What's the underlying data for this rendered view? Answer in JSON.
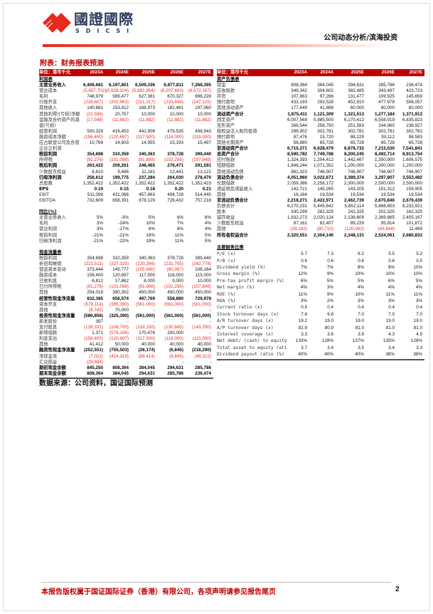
{
  "header": {
    "logo_cn": "國證國際",
    "logo_en": "SDICSI",
    "report_type": "公司动态分析/滨海投资"
  },
  "title": "附表：财务报表预测",
  "colors": {
    "accent": "#c00000",
    "negative": "#e8281c"
  },
  "left_table": {
    "unit": "单位：港币千元",
    "columns": [
      "2023A",
      "2024E",
      "2025E",
      "2026E",
      "2027E"
    ],
    "rows": [
      {
        "label": "利润表",
        "kind": "section",
        "values": []
      },
      {
        "label": "主营业务收入",
        "kind": "bold",
        "values": [
          "6,406,681",
          "6,197,801",
          "6,509,336",
          "6,877,811",
          "7,268,395"
        ]
      },
      {
        "label": "营业成本",
        "values": [
          "(5,657,702)",
          "(5,628,324)",
          "(5,881,954)",
          "(6,207,483)",
          "(6,572,167)"
        ]
      },
      {
        "label": "毛利",
        "values": [
          "748,979",
          "569,477",
          "627,381",
          "670,327",
          "696,228"
        ]
      },
      {
        "label": "行政开支",
        "values": [
          "(218,607)",
          "(202,963)",
          "(221,317)",
          "(233,846)",
          "(247,125)"
        ]
      },
      {
        "label": "其他收入",
        "values": [
          "140,681",
          "153,612",
          "168,973",
          "182,461",
          "197,060"
        ]
      },
      {
        "label": "其他利得/(亏损)净额",
        "values": [
          "(21,596)",
          "20,757",
          "10,000",
          "10,000",
          "10,000"
        ]
      },
      {
        "label": "金融及合约资产的减值(亏损)",
        "values": [
          "(17,548)",
          "(11,882)",
          "(11,882)",
          "(11,882)",
          "(11,882)"
        ]
      },
      {
        "label": "经营利润",
        "values": [
          "500,329",
          "416,453",
          "442,908",
          "479,535",
          "498,943"
        ]
      },
      {
        "label": "融资成本净额",
        "values": [
          "(156,400)",
          "(120,697)",
          "(117,500)",
          "(116,000)",
          "(115,000)"
        ]
      },
      {
        "label": "应占联营公司及合营企业之利润",
        "values": [
          "10,769",
          "14,603",
          "14,955",
          "15,193",
          "15,497"
        ]
      },
      {
        "label": "税前利润",
        "kind": "bold",
        "values": [
          "354,698",
          "310,359",
          "340,363",
          "378,728",
          "399,440"
        ]
      },
      {
        "label": "所得税",
        "values": [
          "(91,276)",
          "(101,098)",
          "(91,898)",
          "(102,256)",
          "(107,849)"
        ]
      },
      {
        "label": "税后利润",
        "kind": "bold",
        "values": [
          "263,422",
          "209,261",
          "248,465",
          "276,471",
          "291,591"
        ]
      },
      {
        "label": "少数股东权益",
        "values": [
          "6,810",
          "9,486",
          "11,181",
          "12,441",
          "13,122"
        ]
      },
      {
        "label": "归母净利润",
        "kind": "bold",
        "values": [
          "256,612",
          "199,775",
          "237,284",
          "264,030",
          "278,470"
        ]
      },
      {
        "label": "总股数",
        "values": [
          "1,352,422",
          "1,352,422",
          "1,352,422",
          "1,352,422",
          "1,352,423"
        ]
      },
      {
        "label": "EPS",
        "kind": "bold",
        "values": [
          "0.19",
          "0.15",
          "0.18",
          "0.20",
          "0.21"
        ]
      },
      {
        "label": "EBIT",
        "values": [
          "511,098",
          "431,066",
          "457,863",
          "494,728",
          "514,440"
        ]
      },
      {
        "label": "EBITDA",
        "values": [
          "732,609",
          "658,391",
          "678,129",
          "726,432",
          "757,218"
        ]
      },
      {
        "label": "",
        "values": []
      },
      {
        "label": "同比(%)",
        "kind": "section",
        "values": []
      },
      {
        "label": "主营业务收入",
        "values": [
          "5%",
          "-3%",
          "5%",
          "6%",
          "6%"
        ]
      },
      {
        "label": "毛利",
        "values": [
          "3%",
          "-24%",
          "10%",
          "7%",
          "4%"
        ]
      },
      {
        "label": "营业利润",
        "values": [
          "3%",
          "-17%",
          "6%",
          "8%",
          "4%"
        ]
      },
      {
        "label": "税前利润",
        "values": [
          "-21%",
          "-21%",
          "19%",
          "11%",
          "5%"
        ]
      },
      {
        "label": "归母净利润",
        "values": [
          "-21%",
          "-22%",
          "19%",
          "11%",
          "5%"
        ]
      },
      {
        "label": "",
        "values": []
      },
      {
        "label": "现金流量表",
        "kind": "section",
        "values": []
      },
      {
        "label": "税前利润",
        "values": [
          "354,698",
          "310,359",
          "340,363",
          "378,728",
          "399,440"
        ]
      },
      {
        "label": "折旧和摊销",
        "values": [
          "(221,511)",
          "(227,325)",
          "(220,266)",
          "(231,705)",
          "(242,778)"
        ]
      },
      {
        "label": "营运资本变动",
        "values": [
          "373,444",
          "145,777",
          "(105,940)",
          "(60,067)",
          "106,164"
        ]
      },
      {
        "label": "融资成本",
        "values": [
          "156,400",
          "120,697",
          "117,500",
          "116,000",
          "115,000"
        ]
      },
      {
        "label": "已收利息",
        "values": [
          "6,812",
          "17,862",
          "8,000",
          "9,000",
          "10,000"
        ]
      },
      {
        "label": "已付所得税",
        "values": [
          "(91,276)",
          "(101,098)",
          "(91,898)",
          "(102,256)",
          "(107,849)"
        ]
      },
      {
        "label": "其他",
        "values": [
          "254,018",
          "390,302",
          "450,000",
          "450,000",
          "450,000"
        ]
      },
      {
        "label": "经营性现金净流量",
        "kind": "bold",
        "values": [
          "832,385",
          "656,574",
          "497,769",
          "558,880",
          "729,978"
        ]
      },
      {
        "label": "资本开支",
        "values": [
          "(578,114)",
          "(395,390)",
          "(561,000)",
          "(561,000)",
          "(561,000)"
        ]
      },
      {
        "label": "其他",
        "values": [
          "(8,742)",
          "70,000",
          "-",
          "-",
          "-"
        ]
      },
      {
        "label": "投资性现金净流量",
        "kind": "bold",
        "values": [
          "(586,856)",
          "(325,390)",
          "(561,000)",
          "(561,000)",
          "(561,000)"
        ]
      },
      {
        "label": "新发股份",
        "values": [
          "397",
          "-",
          "-",
          "-",
          "-"
        ]
      },
      {
        "label": "支付股息",
        "values": [
          "(139,331)",
          "(108,700)",
          "(119,150)",
          "(130,845)",
          "(143,290)"
        ]
      },
      {
        "label": "新增借款",
        "values": [
          "1,371",
          "(576,106)",
          "170,476",
          "200,000",
          "-"
        ]
      },
      {
        "label": "利息支出",
        "values": [
          "(156,400)",
          "(120,697)",
          "(117,500)",
          "(116,000)",
          "(115,000)"
        ]
      },
      {
        "label": "其他",
        "values": [
          "41,412",
          "50,000",
          "40,000",
          "40,000",
          "40,000"
        ]
      },
      {
        "label": "融资性现金净流量",
        "kind": "bold",
        "values": [
          "(252,551)",
          "(755,503)",
          "(26,174)",
          "(6,845)",
          "(218,290)"
        ]
      },
      {
        "label": "净现金流",
        "values": [
          "(7,022)",
          "(424,319)",
          "(89,414)",
          "(6,845)",
          "(49,312)"
        ]
      },
      {
        "label": "汇兑损益",
        "values": [
          "(29,884)",
          "-",
          "-",
          "-",
          "-"
        ]
      },
      {
        "label": "期初现金余额",
        "kind": "bold",
        "values": [
          "845,250",
          "808,364",
          "384,045",
          "294,631",
          "285,786"
        ]
      },
      {
        "label": "期末现金余额",
        "kind": "bold",
        "values": [
          "808,364",
          "384,045",
          "294,631",
          "285,786",
          "236,474"
        ]
      }
    ]
  },
  "right_table": {
    "unit": "单位：港币千元",
    "columns": [
      "2023A",
      "2024A",
      "2025E",
      "2026E",
      "2027E"
    ],
    "rows": [
      {
        "label": "资产负债表",
        "kind": "section",
        "values": []
      },
      {
        "label": "现金",
        "values": [
          "808,364",
          "384,045",
          "294,631",
          "285,786",
          "236,474"
        ]
      },
      {
        "label": "应收账款",
        "values": [
          "348,342",
          "304,602",
          "382,485",
          "343,497",
          "423,723"
        ]
      },
      {
        "label": "存货",
        "values": [
          "107,863",
          "97,266",
          "131,477",
          "109,925",
          "145,659"
        ]
      },
      {
        "label": "预付款项",
        "values": [
          "433,193",
          "293,528",
          "452,910",
          "477,978",
          "506,057"
        ]
      },
      {
        "label": "其他流动资产",
        "values": [
          "177,649",
          "41,868",
          "60,000",
          "60,000",
          "60,000"
        ]
      },
      {
        "label": "流动资产合计",
        "kind": "bold",
        "values": [
          "1,875,411",
          "1,121,309",
          "1,321,513",
          "1,277,184",
          "1,371,913"
        ]
      },
      {
        "label": "固定资产",
        "values": [
          "6,007,569",
          "5,985,500",
          "6,170,412",
          "6,508,919",
          "6,835,823"
        ]
      },
      {
        "label": "无形资产",
        "values": [
          "266,544",
          "258,750",
          "251,583",
          "244,960",
          "238,927"
        ]
      },
      {
        "label": "按权益法入账的投资",
        "values": [
          "296,902",
          "302,781",
          "302,781",
          "302,781",
          "302,781"
        ]
      },
      {
        "label": "预付款项",
        "values": [
          "87,476",
          "15,720",
          "88,229",
          "93,112",
          "98,583"
        ]
      },
      {
        "label": "其他长期资产",
        "values": [
          "56,880",
          "65,728",
          "65,728",
          "65,728",
          "65,728"
        ]
      },
      {
        "label": "非流动资产合计",
        "kind": "bold",
        "values": [
          "6,715,371",
          "6,628,479",
          "6,878,732",
          "7,215,530",
          "7,541,841"
        ]
      },
      {
        "label": "总资产合计",
        "kind": "bold",
        "values": [
          "8,590,782",
          "7,749,788",
          "8,200,245",
          "8,492,714",
          "8,913,754"
        ]
      },
      {
        "label": "应付账款",
        "values": [
          "1,324,393",
          "1,204,412",
          "1,442,467",
          "1,350,900",
          "1,606,575"
        ]
      },
      {
        "label": "短期借款",
        "values": [
          "1,846,244",
          "1,071,352",
          "1,200,000",
          "1,200,000",
          "1,200,000"
        ]
      },
      {
        "label": "其他流动负债",
        "values": [
          "881,323",
          "746,907",
          "746,907",
          "746,907",
          "746,907"
        ]
      },
      {
        "label": "流动负债合计",
        "kind": "bold",
        "values": [
          "4,051,960",
          "3,022,671",
          "3,389,374",
          "3,297,807",
          "3,553,482"
        ]
      },
      {
        "label": "长期借款",
        "values": [
          "2,059,386",
          "2,258,172",
          "2,300,000",
          "2,500,000",
          "2,500,000"
        ]
      },
      {
        "label": "递延税及递延收入",
        "values": [
          "142,721",
          "145,265",
          "143,205",
          "151,312",
          "159,905"
        ]
      },
      {
        "label": "其他",
        "values": [
          "16,164",
          "19,534",
          "19,534",
          "19,534",
          "19,534"
        ]
      },
      {
        "label": "非流动负债合计",
        "kind": "bold",
        "values": [
          "2,218,271",
          "2,422,971",
          "2,462,739",
          "2,670,846",
          "2,679,439"
        ]
      },
      {
        "label": "负债合计",
        "values": [
          "6,270,231",
          "5,445,642",
          "5,852,114",
          "5,968,653",
          "6,232,921"
        ]
      },
      {
        "label": "股本",
        "values": [
          "330,299",
          "282,325",
          "242,325",
          "202,325",
          "162,325"
        ]
      },
      {
        "label": "留存收益",
        "values": [
          "1,932,273",
          "2,020,124",
          "2,136,609",
          "2,369,865",
          "2,405,167"
        ]
      },
      {
        "label": "少数股东权益",
        "values": [
          "87,161",
          "82,407",
          "89,229",
          "95,914",
          "101,872"
        ]
      },
      {
        "label": "其他",
        "values": [
          "(29,182)",
          "(80,710)",
          "(120,062)",
          "(43,844)",
          "11,469"
        ]
      },
      {
        "label": "所有者权益合计",
        "kind": "bold",
        "values": [
          "2,320,551",
          "2,304,146",
          "2,348,131",
          "2,524,061",
          "2,680,833"
        ]
      },
      {
        "label": "",
        "values": []
      }
    ],
    "ratio_rows": [
      {
        "label": "主要财务比率",
        "kind": "section",
        "values": []
      },
      {
        "label": "P/E (x)",
        "values": [
          "5.7",
          "7.3",
          "6.2",
          "5.5",
          "5.2"
        ]
      },
      {
        "label": "P/B (x)",
        "values": [
          "0.6",
          "0.6",
          "0.6",
          "0.6",
          "0.5"
        ]
      },
      {
        "label": "Dividend yield (%)",
        "values": [
          "7%",
          "7%",
          "8%",
          "9%",
          "10%"
        ]
      },
      {
        "label": "Gross margin (%)",
        "values": [
          "12%",
          "9%",
          "10%",
          "10%",
          "10%"
        ]
      },
      {
        "label": "Pre-tax profit margin (%)",
        "values": [
          "6%",
          "5%",
          "5%",
          "6%",
          "5%"
        ]
      },
      {
        "label": "Net margin (%)",
        "values": [
          "4%",
          "3%",
          "4%",
          "4%",
          "4%"
        ]
      },
      {
        "label": "ROE (%)",
        "values": [
          "11%",
          "9%",
          "10%",
          "11%",
          "11%"
        ]
      },
      {
        "label": "ROA (%)",
        "values": [
          "3%",
          "2%",
          "3%",
          "3%",
          "3%"
        ]
      },
      {
        "label": "Current ratio (x)",
        "values": [
          "0.5",
          "0.4",
          "0.4",
          "0.4",
          "0.4"
        ]
      },
      {
        "label": "Stock turnover days (x)",
        "values": [
          "7.8",
          "6.8",
          "7.0",
          "7.0",
          "7.0"
        ]
      },
      {
        "label": "A/R turnover days (x)",
        "values": [
          "19.2",
          "19.0",
          "19.0",
          "19.0",
          "19.0"
        ]
      },
      {
        "label": "A/P turnover days (x)",
        "values": [
          "82.9",
          "80.9",
          "81.0",
          "81.0",
          "81.0"
        ]
      },
      {
        "label": "Interest coverage (x)",
        "values": [
          "3.3",
          "3.6",
          "3.9",
          "4.3",
          "4.5"
        ]
      },
      {
        "label": "Net debt/ (cash) to equity",
        "values": [
          "133%",
          "128%",
          "137%",
          "135%",
          "129%"
        ]
      },
      {
        "label": "Total asset to equity rati",
        "values": [
          "3.7",
          "3.4",
          "3.5",
          "3.4",
          "3.3"
        ]
      },
      {
        "label": "Dividend payout ratio (%)",
        "values": [
          "40%",
          "40%",
          "40%",
          "38%",
          "38%"
        ]
      }
    ]
  },
  "source": "数据来源：公司资料，国证国际预测",
  "footer": {
    "disclaimer": "本报告版权属于国证国际证券（香港）有限公司，各项声明请参见报告尾页",
    "page": "2"
  }
}
